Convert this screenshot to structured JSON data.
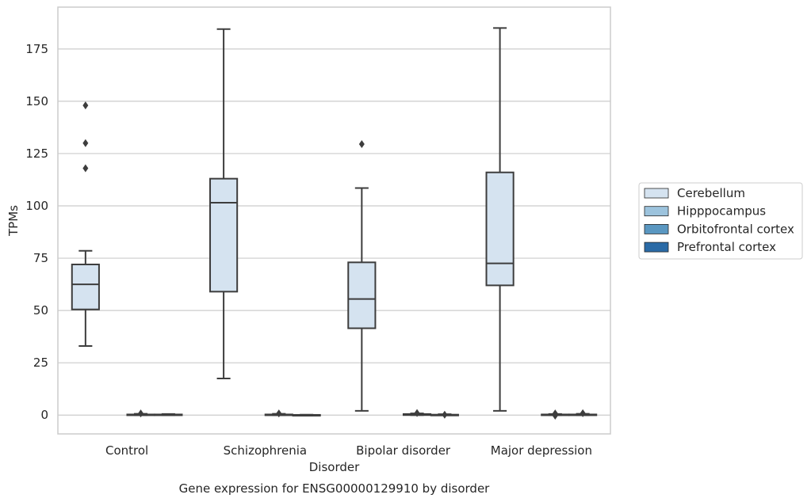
{
  "chart_data": {
    "type": "box",
    "caption": "Gene expression for ENSG00000129910 by disorder",
    "xlabel": "Disorder",
    "ylabel": "TPMs",
    "ylim": [
      -9,
      195
    ],
    "yticks": [
      0,
      25,
      50,
      75,
      100,
      125,
      150,
      175
    ],
    "grid": "horizontal",
    "legend_position": "right",
    "categories": [
      "Control",
      "Schizophrenia",
      "Bipolar disorder",
      "Major depression"
    ],
    "series": [
      {
        "name": "Cerebellum",
        "color": "#d5e3f0",
        "boxes": [
          {
            "whisker_low": 33,
            "q1": 50.5,
            "median": 62.5,
            "q3": 72,
            "whisker_high": 78.5,
            "outliers": [
              118,
              130,
              148
            ]
          },
          {
            "whisker_low": 17.5,
            "q1": 59,
            "median": 101.5,
            "q3": 113,
            "whisker_high": 184.5,
            "outliers": []
          },
          {
            "whisker_low": 2,
            "q1": 41.5,
            "median": 55.5,
            "q3": 73,
            "whisker_high": 108.5,
            "outliers": [
              129.5
            ]
          },
          {
            "whisker_low": 2,
            "q1": 62,
            "median": 72.5,
            "q3": 116,
            "whisker_high": 185,
            "outliers": []
          }
        ]
      },
      {
        "name": "Hipppocampus",
        "color": "#9cc3dd",
        "boxes": [
          null,
          null,
          null,
          null
        ]
      },
      {
        "name": "Orbitofrontal cortex",
        "color": "#5a97c1",
        "boxes": [
          {
            "whisker_low": 0,
            "q1": 0,
            "median": 0.1,
            "q3": 0.3,
            "whisker_high": 0.6,
            "outliers": [
              0.8
            ]
          },
          {
            "whisker_low": 0,
            "q1": 0,
            "median": 0.1,
            "q3": 0.3,
            "whisker_high": 0.6,
            "outliers": [
              0.8
            ]
          },
          {
            "whisker_low": 0,
            "q1": 0,
            "median": 0.2,
            "q3": 0.5,
            "whisker_high": 0.8,
            "outliers": [
              1.0
            ]
          },
          {
            "whisker_low": 0,
            "q1": 0,
            "median": 0.1,
            "q3": 0.3,
            "whisker_high": 0.5,
            "outliers": [
              0.8,
              -0.3
            ]
          }
        ]
      },
      {
        "name": "Prefrontal cortex",
        "color": "#2a6aa6",
        "boxes": [
          {
            "whisker_low": 0,
            "q1": 0,
            "median": 0.1,
            "q3": 0.3,
            "whisker_high": 0.5,
            "outliers": []
          },
          {
            "whisker_low": -0.2,
            "q1": -0.1,
            "median": 0,
            "q3": 0.1,
            "whisker_high": 0.2,
            "outliers": []
          },
          {
            "whisker_low": 0,
            "q1": 0,
            "median": 0.1,
            "q3": 0.2,
            "whisker_high": 0.4,
            "outliers": [
              0.2
            ]
          },
          {
            "whisker_low": 0,
            "q1": 0,
            "median": 0.1,
            "q3": 0.3,
            "whisker_high": 0.6,
            "outliers": [
              0.9
            ]
          }
        ]
      }
    ],
    "colors": {
      "axes_edge": "#cccccc",
      "grid": "#cccccc",
      "line": "#3d3d3d",
      "text": "#262626"
    }
  }
}
